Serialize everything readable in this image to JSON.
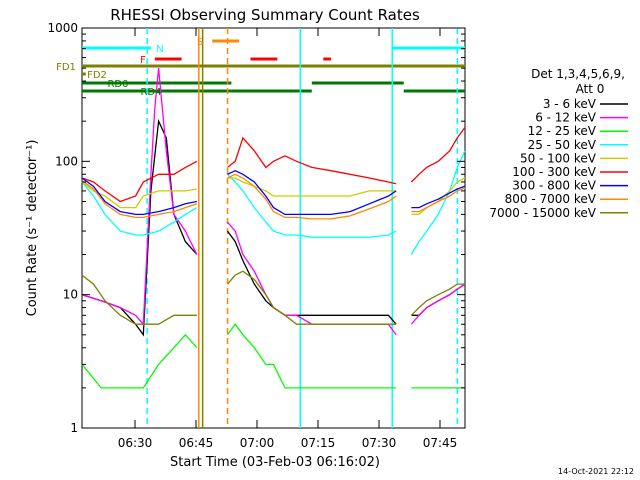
{
  "chart_data": {
    "type": "line",
    "title": "RHESSI Observing Summary Count Rates",
    "xlabel": "Start Time (03-Feb-03 06:16:02)",
    "ylabel": "Count Rate (s⁻¹ detector⁻¹)",
    "yscale": "log",
    "xlim_minutes": [
      0,
      100
    ],
    "ylim": [
      1,
      1000
    ],
    "x_ticks": [
      "06:30",
      "06:45",
      "07:00",
      "07:15",
      "07:30",
      "07:45"
    ],
    "y_ticks": [
      "1",
      "10",
      "100",
      "1000"
    ],
    "legend_title": [
      "Det 1,3,4,5,6,9,",
      "Att 0"
    ],
    "legend_position": "right",
    "timestamp": "14-Oct-2021 22:12",
    "series": [
      {
        "name": "3 - 6 keV",
        "color": "#000000",
        "x": [
          0,
          5,
          10,
          14,
          16,
          18,
          20,
          22,
          24,
          27,
          30,
          31,
          32,
          34,
          35,
          38,
          40,
          42,
          45,
          48,
          50,
          53,
          56,
          60,
          65,
          70,
          75,
          80,
          82,
          84,
          85,
          86,
          88,
          90,
          93,
          96,
          98,
          100
        ],
        "y": [
          10,
          9,
          8,
          6,
          5,
          60,
          200,
          150,
          40,
          25,
          20,
          0,
          0,
          0,
          0,
          30,
          25,
          18,
          12,
          9,
          8,
          7,
          7,
          7,
          7,
          7,
          7,
          7,
          6,
          0,
          0,
          7,
          7,
          8,
          9,
          10,
          11,
          12
        ]
      },
      {
        "name": "6 - 12 keV",
        "color": "#ff00ff",
        "x": [
          0,
          5,
          10,
          14,
          16,
          18,
          19,
          20,
          22,
          24,
          27,
          30,
          31,
          32,
          34,
          35,
          38,
          40,
          42,
          45,
          48,
          50,
          53,
          56,
          60,
          65,
          70,
          75,
          80,
          82,
          84,
          85,
          86,
          88,
          90,
          93,
          96,
          98,
          100
        ],
        "y": [
          10,
          9,
          8,
          7,
          6,
          80,
          250,
          500,
          120,
          40,
          30,
          20,
          0,
          0,
          0,
          0,
          35,
          30,
          20,
          15,
          10,
          8,
          7,
          7,
          6,
          6,
          6,
          6,
          6,
          5,
          0,
          0,
          6,
          7,
          8,
          9,
          10,
          11,
          12
        ]
      },
      {
        "name": "12 - 25 keV",
        "color": "#00ff00",
        "x": [
          0,
          5,
          10,
          14,
          16,
          20,
          24,
          27,
          30,
          31,
          32,
          34,
          35,
          38,
          40,
          42,
          45,
          48,
          50,
          53,
          56,
          60,
          65,
          70,
          75,
          80,
          82,
          84,
          85,
          86,
          88,
          90,
          93,
          96,
          98,
          100
        ],
        "y": [
          3,
          2,
          2,
          2,
          2,
          3,
          4,
          5,
          4,
          0,
          0,
          0,
          0,
          5,
          6,
          5,
          4,
          3,
          3,
          2,
          2,
          2,
          2,
          2,
          2,
          2,
          2,
          0,
          0,
          2,
          2,
          2,
          2,
          2,
          2,
          2
        ]
      },
      {
        "name": "25 - 50 keV",
        "color": "#00ffff",
        "x": [
          0,
          3,
          6,
          10,
          14,
          16,
          20,
          24,
          27,
          30,
          31,
          32,
          34,
          35,
          38,
          40,
          42,
          45,
          48,
          50,
          53,
          56,
          60,
          65,
          70,
          75,
          80,
          82,
          84,
          85,
          86,
          88,
          90,
          93,
          96,
          98,
          100
        ],
        "y": [
          70,
          55,
          40,
          30,
          28,
          28,
          30,
          35,
          40,
          45,
          0,
          0,
          0,
          0,
          80,
          70,
          60,
          45,
          35,
          30,
          28,
          28,
          27,
          27,
          27,
          27,
          28,
          30,
          0,
          0,
          20,
          25,
          30,
          40,
          60,
          90,
          120
        ]
      },
      {
        "name": "50 - 100 keV",
        "color": "#cccc00",
        "x": [
          0,
          3,
          6,
          10,
          14,
          16,
          20,
          24,
          27,
          30,
          31,
          32,
          34,
          35,
          38,
          40,
          42,
          45,
          48,
          50,
          53,
          56,
          60,
          65,
          70,
          75,
          80,
          82,
          84,
          85,
          86,
          88,
          90,
          93,
          96,
          98,
          100
        ],
        "y": [
          70,
          60,
          55,
          45,
          45,
          55,
          60,
          60,
          60,
          62,
          0,
          0,
          0,
          0,
          75,
          75,
          70,
          65,
          60,
          55,
          55,
          55,
          55,
          55,
          55,
          60,
          60,
          60,
          0,
          0,
          40,
          40,
          45,
          50,
          60,
          70,
          75
        ]
      },
      {
        "name": "100 - 300 keV",
        "color": "#ff0000",
        "x": [
          0,
          3,
          6,
          10,
          14,
          16,
          20,
          24,
          27,
          30,
          31,
          32,
          34,
          35,
          38,
          40,
          42,
          45,
          48,
          50,
          53,
          56,
          60,
          65,
          70,
          75,
          80,
          82,
          84,
          85,
          86,
          88,
          90,
          93,
          96,
          98,
          100
        ],
        "y": [
          75,
          70,
          60,
          50,
          55,
          70,
          80,
          80,
          90,
          100,
          0,
          0,
          0,
          0,
          90,
          100,
          150,
          120,
          90,
          100,
          110,
          100,
          90,
          85,
          80,
          75,
          70,
          68,
          0,
          0,
          70,
          80,
          90,
          100,
          120,
          150,
          180
        ]
      },
      {
        "name": "300 - 800 keV",
        "color": "#0000ff",
        "x": [
          0,
          3,
          6,
          10,
          14,
          16,
          20,
          24,
          27,
          30,
          31,
          32,
          34,
          35,
          38,
          40,
          42,
          45,
          48,
          50,
          53,
          56,
          60,
          65,
          70,
          75,
          80,
          82,
          84,
          85,
          86,
          88,
          90,
          93,
          96,
          98,
          100
        ],
        "y": [
          75,
          65,
          50,
          42,
          40,
          40,
          42,
          45,
          48,
          50,
          0,
          0,
          0,
          0,
          80,
          85,
          80,
          70,
          55,
          45,
          40,
          40,
          40,
          40,
          42,
          48,
          55,
          60,
          0,
          0,
          45,
          45,
          48,
          52,
          58,
          62,
          65
        ]
      },
      {
        "name": "800 - 7000 keV",
        "color": "#ff8800",
        "x": [
          0,
          3,
          6,
          10,
          14,
          16,
          20,
          24,
          27,
          30,
          31,
          32,
          34,
          35,
          38,
          40,
          42,
          45,
          48,
          50,
          53,
          56,
          60,
          65,
          70,
          75,
          80,
          82,
          84,
          85,
          86,
          88,
          90,
          93,
          96,
          98,
          100
        ],
        "y": [
          72,
          62,
          48,
          40,
          38,
          38,
          40,
          42,
          45,
          48,
          0,
          0,
          0,
          0,
          75,
          80,
          75,
          65,
          52,
          42,
          38,
          38,
          37,
          37,
          39,
          44,
          50,
          55,
          0,
          0,
          42,
          42,
          45,
          50,
          55,
          60,
          63
        ]
      },
      {
        "name": "7000 - 15000 keV",
        "color": "#808000",
        "x": [
          0,
          3,
          6,
          10,
          14,
          16,
          20,
          24,
          27,
          30,
          31,
          32,
          34,
          35,
          38,
          40,
          42,
          45,
          48,
          50,
          53,
          56,
          60,
          65,
          70,
          75,
          80,
          82,
          84,
          85,
          86,
          88,
          90,
          93,
          96,
          98,
          100
        ],
        "y": [
          14,
          12,
          9,
          7,
          6,
          6,
          6,
          7,
          7,
          7,
          0,
          0,
          0,
          0,
          12,
          14,
          15,
          13,
          10,
          8,
          7,
          6,
          6,
          6,
          6,
          6,
          6,
          6,
          0,
          0,
          7,
          8,
          9,
          10,
          11,
          12,
          12
        ]
      }
    ],
    "flag_bars": [
      {
        "label": "N",
        "color": "#00ffff",
        "segments": [
          [
            0,
            18
          ],
          [
            81,
            100
          ]
        ],
        "level": 1
      },
      {
        "label": "S",
        "color": "#ff8800",
        "segments": [
          [
            34,
            41
          ]
        ],
        "level": 0
      },
      {
        "label": "F",
        "color": "#ff0000",
        "segments": [
          [
            19,
            26
          ],
          [
            44,
            51
          ],
          [
            63,
            65
          ]
        ],
        "level": 2
      },
      {
        "label": "FD1",
        "color": "#808000",
        "segments": [
          [
            0,
            100
          ]
        ],
        "level": 3
      },
      {
        "label": "FD2",
        "color": "#808000",
        "segments": [
          [
            0,
            1
          ]
        ],
        "level": 4
      },
      {
        "label": "RD0",
        "color": "#007700",
        "segments": [
          [
            0,
            39
          ],
          [
            60,
            84
          ]
        ],
        "level": 5
      },
      {
        "label": "RD4",
        "color": "#007700",
        "segments": [
          [
            0,
            39
          ],
          [
            39,
            60
          ],
          [
            84,
            100
          ]
        ],
        "level": 6
      }
    ],
    "vertical_lines": [
      {
        "x_minute": 17,
        "color": "#00ffff",
        "style": "dashed"
      },
      {
        "x_minute": 30.5,
        "color": "#ff8800",
        "style": "solid"
      },
      {
        "x_minute": 31.5,
        "color": "#808000",
        "style": "solid"
      },
      {
        "x_minute": 38,
        "color": "#ff8800",
        "style": "dashed"
      },
      {
        "x_minute": 57,
        "color": "#00ffff",
        "style": "solid"
      },
      {
        "x_minute": 81,
        "color": "#00ffff",
        "style": "solid"
      },
      {
        "x_minute": 98,
        "color": "#00ffff",
        "style": "dashed"
      }
    ]
  }
}
